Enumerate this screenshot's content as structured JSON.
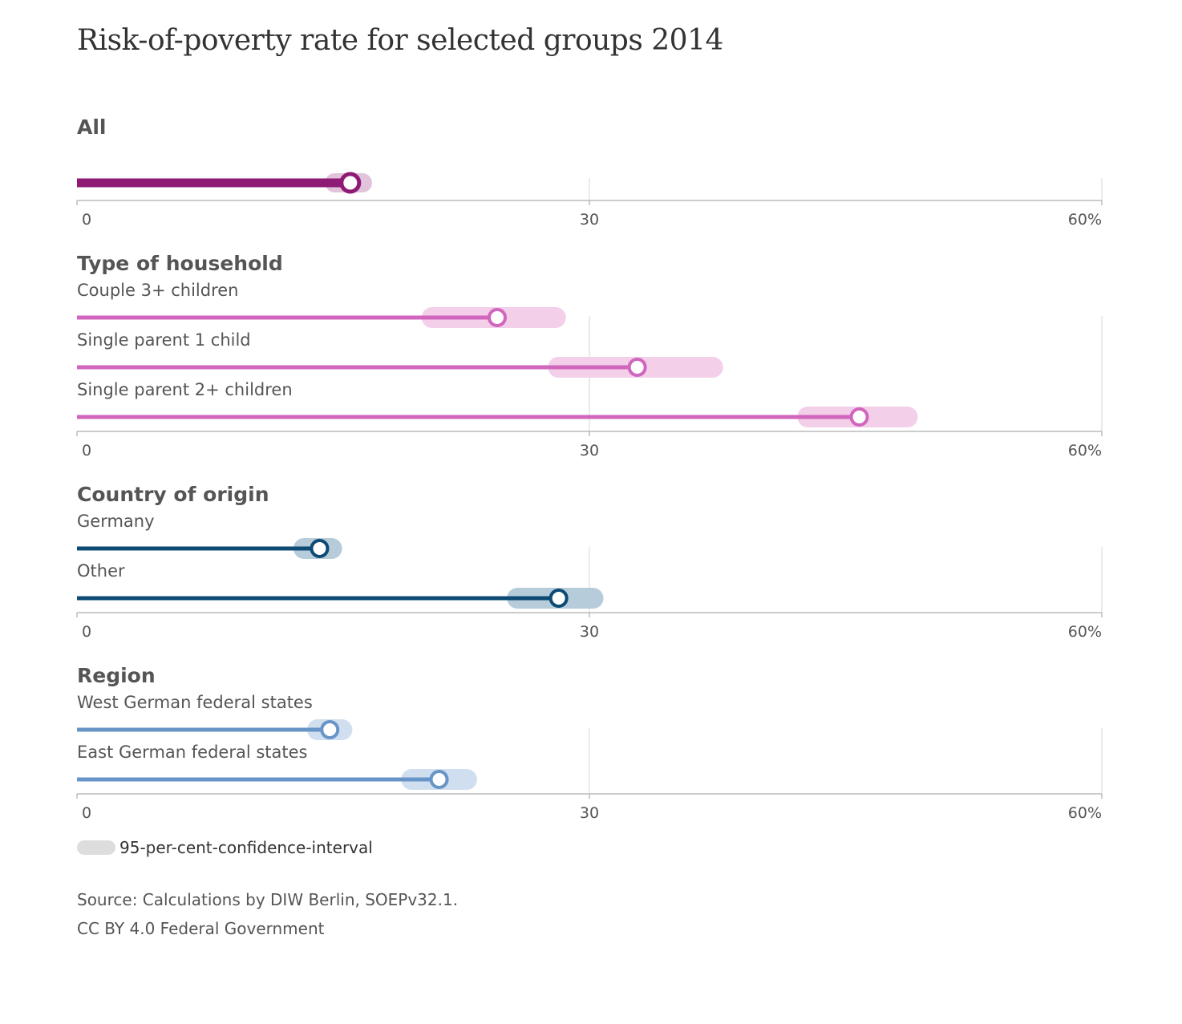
{
  "title": "Risk-of-poverty rate for selected groups 2014",
  "chart_data": {
    "type": "dot-range",
    "title": "Risk-of-poverty rate for selected groups 2014",
    "xlim": [
      0,
      60
    ],
    "x_ticks": [
      "0",
      "30",
      "60%"
    ],
    "groups": [
      {
        "title": "All",
        "color": "#8e1a75",
        "ci_color": "#e2c3dc",
        "rows": [
          {
            "label": "",
            "value": 16.0,
            "ci": [
              14.9,
              16.9
            ]
          }
        ]
      },
      {
        "title": "Type of household",
        "color": "#d066bd",
        "ci_color": "#f3cfe9",
        "rows": [
          {
            "label": "Couple 3+ children",
            "value": 24.6,
            "ci": [
              20.6,
              28.2
            ]
          },
          {
            "label": "Single parent 1 child",
            "value": 32.8,
            "ci": [
              28.0,
              37.4
            ]
          },
          {
            "label": "Single parent 2+ children",
            "value": 45.8,
            "ci": [
              42.6,
              48.8
            ]
          }
        ]
      },
      {
        "title": "Country of origin",
        "color": "#0d4a74",
        "ci_color": "#b6ccda",
        "rows": [
          {
            "label": "Germany",
            "value": 14.2,
            "ci": [
              13.1,
              15.1
            ]
          },
          {
            "label": "Other",
            "value": 28.2,
            "ci": [
              25.6,
              30.4
            ]
          }
        ]
      },
      {
        "title": "Region",
        "color": "#6895c7",
        "ci_color": "#d0dff0",
        "rows": [
          {
            "label": "West German federal states",
            "value": 14.8,
            "ci": [
              13.9,
              15.7
            ]
          },
          {
            "label": "East German federal states",
            "value": 21.2,
            "ci": [
              19.4,
              23.0
            ]
          }
        ]
      }
    ],
    "legend": {
      "label": "95-per-cent-confidence-interval",
      "color": "#dddddd"
    }
  },
  "source": {
    "line1": "Source: Calculations by DIW Berlin, SOEPv32.1.",
    "line2": "CC BY 4.0 Federal Government"
  }
}
